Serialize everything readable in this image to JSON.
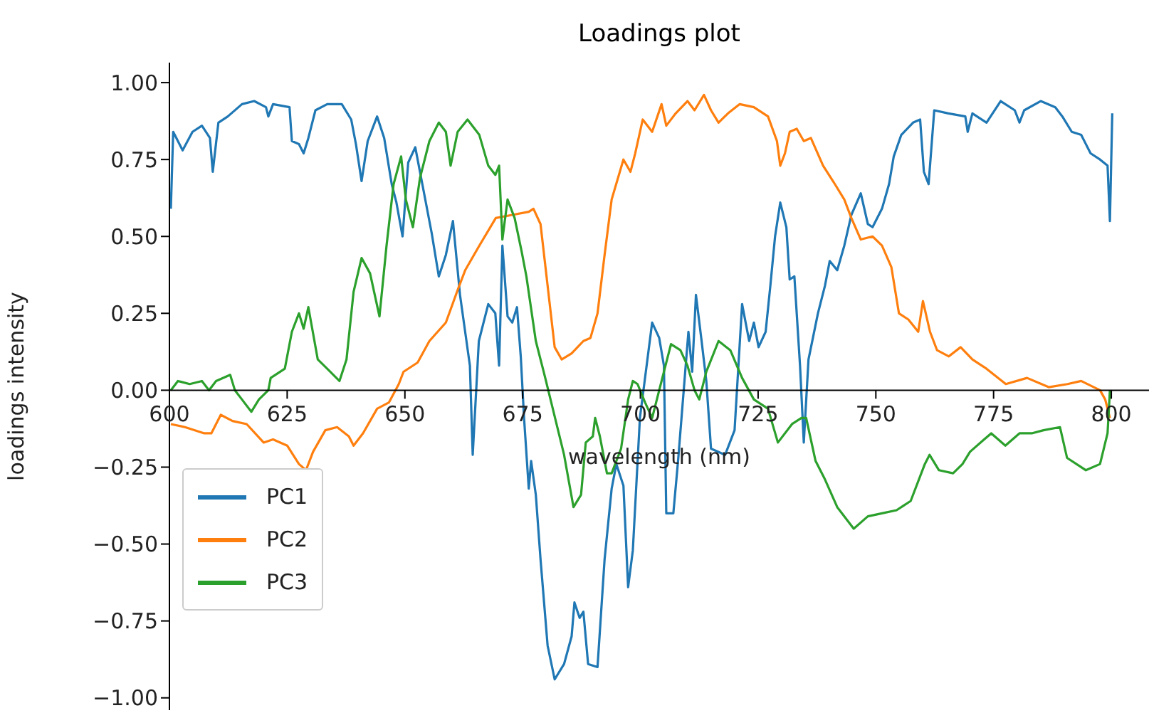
{
  "chart_data": {
    "type": "line",
    "title": "Loadings plot",
    "xlabel": "wavelength (nm)",
    "ylabel": "loadings intensity",
    "xlim": [
      600,
      808
    ],
    "xticks": [
      600,
      625,
      650,
      675,
      700,
      725,
      750,
      775,
      800
    ],
    "ylim": [
      -1.04,
      1.065
    ],
    "yticks": [
      {
        "value": -1,
        "label": "−1.00"
      },
      {
        "value": -0.75,
        "label": "−0.75"
      },
      {
        "value": -0.5,
        "label": "−0.50"
      },
      {
        "value": -0.25,
        "label": "−0.25"
      },
      {
        "value": 0,
        "label": "0.00"
      },
      {
        "value": 0.25,
        "label": "0.25"
      },
      {
        "value": 0.5,
        "label": "0.50"
      },
      {
        "value": 0.75,
        "label": "0.75"
      },
      {
        "value": 1,
        "label": "1.00"
      }
    ],
    "grid": false,
    "legend": "bottom left",
    "marker": "none",
    "line_style": "solid",
    "series": [
      {
        "name": "PC1",
        "color": "#1f77b4",
        "x": [
          600.3,
          600.8,
          602.8,
          604.9,
          606.9,
          608.6,
          609.2,
          610.4,
          612.4,
          615.4,
          618,
          620.5,
          621,
          622,
          625.5,
          626,
          627.5,
          628.5,
          629.5,
          631,
          633.5,
          636.6,
          638.6,
          639.6,
          640.8,
          642.1,
          644.1,
          645.6,
          647.2,
          648.2,
          649.5,
          650.7,
          652.2,
          653.7,
          655.7,
          657.2,
          658.7,
          660.2,
          661.7,
          663.8,
          664.4,
          665.7,
          667.7,
          669.2,
          670,
          670.7,
          671.8,
          672.8,
          673.8,
          674.6,
          675.3,
          676.3,
          676.8,
          677.8,
          678.8,
          680.3,
          681.8,
          683.8,
          685.4,
          686,
          687.1,
          687.9,
          688.9,
          690.9,
          692.4,
          693.9,
          694.9,
          696.4,
          697.4,
          698.4,
          699.9,
          702.5,
          704,
          705,
          705.5,
          707,
          708,
          710.2,
          711,
          711.8,
          713,
          714,
          715,
          718,
          720,
          721.6,
          723.1,
          724.1,
          725.1,
          726.6,
          727.6,
          728.6,
          729.7,
          731,
          731.7,
          732.7,
          733.9,
          734.7,
          735.7,
          737.7,
          739.2,
          740.2,
          741.8,
          743.3,
          744.8,
          746.8,
          748.3,
          749.3,
          751.3,
          752.8,
          753.8,
          755.4,
          757.9,
          759.4,
          760.2,
          761.2,
          762.4,
          765.4,
          769,
          769.5,
          770.5,
          773.5,
          776.5,
          779.5,
          780.5,
          781.5,
          785,
          788.1,
          789.6,
          791.6,
          793.6,
          795.6,
          797.6,
          799.2,
          799.7,
          800.2
        ],
        "values": [
          0.59,
          0.84,
          0.78,
          0.84,
          0.86,
          0.82,
          0.71,
          0.87,
          0.89,
          0.93,
          0.94,
          0.92,
          0.89,
          0.93,
          0.92,
          0.81,
          0.8,
          0.77,
          0.82,
          0.91,
          0.93,
          0.93,
          0.88,
          0.8,
          0.68,
          0.81,
          0.89,
          0.82,
          0.67,
          0.61,
          0.5,
          0.74,
          0.79,
          0.67,
          0.51,
          0.37,
          0.44,
          0.55,
          0.31,
          0.08,
          -0.21,
          0.16,
          0.28,
          0.25,
          0.08,
          0.47,
          0.24,
          0.22,
          0.27,
          0.11,
          -0.09,
          -0.32,
          -0.23,
          -0.34,
          -0.55,
          -0.83,
          -0.94,
          -0.89,
          -0.8,
          -0.69,
          -0.74,
          -0.72,
          -0.89,
          -0.9,
          -0.55,
          -0.32,
          -0.24,
          -0.31,
          -0.64,
          -0.52,
          -0.09,
          0.22,
          0.17,
          0.08,
          -0.4,
          -0.4,
          -0.23,
          0.19,
          0.06,
          0.31,
          0.16,
          0.03,
          -0.19,
          -0.21,
          -0.13,
          0.28,
          0.16,
          0.22,
          0.14,
          0.19,
          0.34,
          0.5,
          0.61,
          0.53,
          0.36,
          0.37,
          0.08,
          -0.17,
          0.1,
          0.25,
          0.34,
          0.42,
          0.39,
          0.47,
          0.57,
          0.64,
          0.54,
          0.53,
          0.59,
          0.67,
          0.76,
          0.83,
          0.87,
          0.88,
          0.71,
          0.67,
          0.91,
          0.9,
          0.89,
          0.84,
          0.9,
          0.87,
          0.94,
          0.91,
          0.87,
          0.91,
          0.94,
          0.92,
          0.89,
          0.84,
          0.83,
          0.77,
          0.75,
          0.73,
          0.55,
          0.9
        ]
      },
      {
        "name": "PC2",
        "color": "#ff7f0e",
        "x": [
          600.3,
          603.3,
          607.4,
          608.9,
          610.9,
          613.4,
          616.4,
          620,
          622,
          625,
          627.5,
          629,
          630.5,
          633.1,
          635.6,
          638.1,
          639.1,
          641.1,
          644.1,
          646.6,
          648.7,
          649.7,
          652.7,
          655.2,
          658.7,
          661.3,
          662.8,
          665.8,
          669.3,
          672.8,
          676.3,
          677.3,
          678.8,
          680.3,
          681.8,
          683.3,
          685.4,
          687.9,
          689.4,
          690.9,
          692.4,
          693.9,
          696.4,
          697.9,
          698.9,
          700.5,
          702.5,
          704.5,
          705.5,
          707.5,
          710,
          711.5,
          713.5,
          715,
          716.6,
          718.6,
          721.1,
          724.1,
          727.1,
          729,
          729.7,
          730.7,
          731.7,
          733.2,
          734.7,
          736.2,
          738.8,
          741.3,
          743.3,
          744.8,
          746.8,
          749.3,
          751.3,
          753.3,
          754.9,
          756.9,
          759,
          760,
          761.5,
          763,
          765.5,
          768,
          770.5,
          773.5,
          777.6,
          782.1,
          786.7,
          790.7,
          793.6,
          797.6,
          798.7,
          799.7
        ],
        "values": [
          -0.11,
          -0.12,
          -0.14,
          -0.14,
          -0.08,
          -0.1,
          -0.11,
          -0.17,
          -0.16,
          -0.18,
          -0.24,
          -0.26,
          -0.2,
          -0.13,
          -0.12,
          -0.15,
          -0.18,
          -0.14,
          -0.06,
          -0.04,
          0.02,
          0.06,
          0.09,
          0.16,
          0.22,
          0.33,
          0.39,
          0.47,
          0.56,
          0.57,
          0.58,
          0.59,
          0.54,
          0.34,
          0.14,
          0.1,
          0.12,
          0.16,
          0.17,
          0.25,
          0.44,
          0.62,
          0.75,
          0.71,
          0.77,
          0.88,
          0.84,
          0.93,
          0.86,
          0.9,
          0.94,
          0.91,
          0.96,
          0.91,
          0.87,
          0.9,
          0.93,
          0.92,
          0.89,
          0.81,
          0.73,
          0.77,
          0.84,
          0.85,
          0.81,
          0.82,
          0.73,
          0.67,
          0.62,
          0.56,
          0.49,
          0.5,
          0.47,
          0.4,
          0.25,
          0.23,
          0.19,
          0.29,
          0.19,
          0.13,
          0.11,
          0.14,
          0.1,
          0.07,
          0.02,
          0.04,
          0.01,
          0.02,
          0.03,
          0,
          -0.03,
          -0.09
        ]
      },
      {
        "name": "PC3",
        "color": "#2ca02c",
        "x": [
          600.3,
          601.8,
          604.3,
          606.9,
          608.4,
          609.9,
          612.9,
          613.9,
          615.4,
          617.4,
          619,
          621,
          621.5,
          624.5,
          626,
          627.5,
          628.5,
          629.5,
          631.5,
          633.5,
          636.1,
          637.6,
          639.1,
          640.8,
          642.6,
          644.6,
          646.1,
          647.6,
          649.2,
          650.2,
          651.7,
          653.2,
          655.2,
          657.2,
          658.7,
          659.7,
          661.2,
          663.3,
          665.8,
          667.7,
          669.2,
          670,
          670.7,
          671.8,
          673.3,
          674.8,
          675.8,
          677.8,
          679.8,
          683.8,
          685.8,
          687.4,
          688.4,
          689.9,
          690.4,
          691.4,
          692.9,
          693.9,
          695.9,
          697.4,
          698.4,
          699.4,
          701,
          702.5,
          704,
          706.5,
          708.5,
          710,
          711.5,
          712.5,
          714,
          716.6,
          719.1,
          721.6,
          724.1,
          727.1,
          729.2,
          732.2,
          734.2,
          735.2,
          737.2,
          739.2,
          741.8,
          745.3,
          748.3,
          751.3,
          754.4,
          757.4,
          760.4,
          761.4,
          763.4,
          766.4,
          768.4,
          770,
          773,
          774.5,
          777.5,
          780.5,
          783.1,
          785.6,
          789.1,
          790.6,
          794.6,
          797.6,
          799.2,
          799.7
        ],
        "values": [
          0,
          0.03,
          0.02,
          0.03,
          0,
          0.03,
          0.05,
          0,
          -0.03,
          -0.07,
          -0.03,
          0,
          0.04,
          0.07,
          0.19,
          0.25,
          0.2,
          0.27,
          0.1,
          0.07,
          0.03,
          0.1,
          0.32,
          0.43,
          0.38,
          0.24,
          0.47,
          0.67,
          0.76,
          0.62,
          0.53,
          0.69,
          0.81,
          0.87,
          0.84,
          0.73,
          0.84,
          0.88,
          0.83,
          0.73,
          0.7,
          0.73,
          0.49,
          0.62,
          0.56,
          0.45,
          0.37,
          0.16,
          0.04,
          -0.21,
          -0.38,
          -0.34,
          -0.17,
          -0.15,
          -0.09,
          -0.15,
          -0.27,
          -0.27,
          -0.19,
          -0.03,
          0.03,
          0.02,
          -0.04,
          -0.09,
          0,
          0.15,
          0.13,
          0.08,
          0,
          -0.03,
          0.06,
          0.16,
          0.13,
          0.04,
          -0.03,
          -0.06,
          -0.17,
          -0.11,
          -0.09,
          -0.09,
          -0.23,
          -0.29,
          -0.38,
          -0.45,
          -0.41,
          -0.4,
          -0.39,
          -0.36,
          -0.24,
          -0.21,
          -0.26,
          -0.27,
          -0.24,
          -0.2,
          -0.16,
          -0.14,
          -0.18,
          -0.14,
          -0.14,
          -0.13,
          -0.12,
          -0.22,
          -0.26,
          -0.24,
          -0.14,
          0
        ]
      }
    ]
  }
}
